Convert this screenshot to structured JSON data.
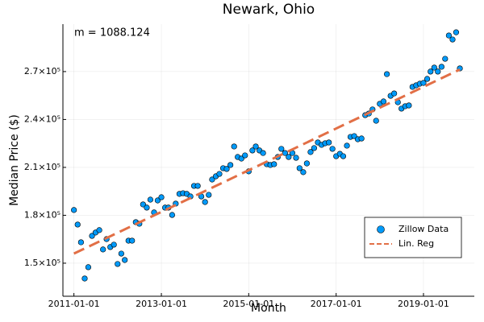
{
  "chart_data": {
    "type": "scatter",
    "title": "Newark, Ohio",
    "xlabel": "Month",
    "ylabel": "Median Price ($)",
    "annotation": "m = 1088.124",
    "grid": true,
    "legend": "lower right",
    "xlim": [
      "2010-10-01",
      "2020-03-01"
    ],
    "xticks": [
      "2011-01-01",
      "2013-01-01",
      "2015-01-01",
      "2017-01-01",
      "2019-01-01"
    ],
    "ylim": [
      129300,
      299700
    ],
    "yticks": [
      {
        "value": 150000,
        "label": "1.5×10⁵"
      },
      {
        "value": 180000,
        "label": "1.8×10⁵"
      },
      {
        "value": 210000,
        "label": "2.1×10⁵"
      },
      {
        "value": 240000,
        "label": "2.4×10⁵"
      },
      {
        "value": 270000,
        "label": "2.7×10⁵"
      }
    ],
    "series": [
      {
        "name": "Zillow Data",
        "type": "scatter",
        "color": "#009af9",
        "x": [
          "2011-01-01",
          "2011-02-01",
          "2011-03-01",
          "2011-04-01",
          "2011-05-01",
          "2011-06-01",
          "2011-07-01",
          "2011-08-01",
          "2011-09-01",
          "2011-10-01",
          "2011-11-01",
          "2011-12-01",
          "2012-01-01",
          "2012-02-01",
          "2012-03-01",
          "2012-04-01",
          "2012-05-01",
          "2012-06-01",
          "2012-07-01",
          "2012-08-01",
          "2012-09-01",
          "2012-10-01",
          "2012-11-01",
          "2012-12-01",
          "2013-01-01",
          "2013-02-01",
          "2013-03-01",
          "2013-04-01",
          "2013-05-01",
          "2013-06-01",
          "2013-07-01",
          "2013-08-01",
          "2013-09-01",
          "2013-10-01",
          "2013-11-01",
          "2013-12-01",
          "2014-01-01",
          "2014-02-01",
          "2014-03-01",
          "2014-04-01",
          "2014-05-01",
          "2014-06-01",
          "2014-07-01",
          "2014-08-01",
          "2014-09-01",
          "2014-10-01",
          "2014-11-01",
          "2014-12-01",
          "2015-01-01",
          "2015-02-01",
          "2015-03-01",
          "2015-04-01",
          "2015-05-01",
          "2015-06-01",
          "2015-07-01",
          "2015-08-01",
          "2015-09-01",
          "2015-10-01",
          "2015-11-01",
          "2015-12-01",
          "2016-01-01",
          "2016-02-01",
          "2016-03-01",
          "2016-04-01",
          "2016-05-01",
          "2016-06-01",
          "2016-07-01",
          "2016-08-01",
          "2016-09-01",
          "2016-10-01",
          "2016-11-01",
          "2016-12-01",
          "2017-01-01",
          "2017-02-01",
          "2017-03-01",
          "2017-04-01",
          "2017-05-01",
          "2017-06-01",
          "2017-07-01",
          "2017-08-01",
          "2017-09-01",
          "2017-10-01",
          "2017-11-01",
          "2017-12-01",
          "2018-01-01",
          "2018-02-01",
          "2018-03-01",
          "2018-04-01",
          "2018-05-01",
          "2018-06-01",
          "2018-07-01",
          "2018-08-01",
          "2018-09-01",
          "2018-10-01",
          "2018-11-01",
          "2018-12-01",
          "2019-01-01",
          "2019-02-01",
          "2019-03-01",
          "2019-04-01",
          "2019-05-01",
          "2019-06-01",
          "2019-07-01",
          "2019-08-01",
          "2019-09-01",
          "2019-10-01",
          "2019-11-01"
        ],
        "values": [
          183300,
          174200,
          163100,
          140400,
          147500,
          167100,
          169200,
          170700,
          158600,
          165100,
          160100,
          161600,
          149500,
          156000,
          152000,
          164100,
          164100,
          175700,
          174700,
          186800,
          184800,
          189800,
          181800,
          189300,
          191300,
          184800,
          184800,
          180200,
          187300,
          193400,
          193800,
          193400,
          191800,
          198400,
          198400,
          191800,
          188300,
          192800,
          202400,
          204400,
          205900,
          209500,
          209000,
          211500,
          223100,
          216500,
          215500,
          217500,
          207500,
          220600,
          223100,
          220600,
          219000,
          212000,
          211500,
          212000,
          216500,
          221600,
          219000,
          216500,
          219000,
          216000,
          209500,
          207000,
          212500,
          219600,
          222100,
          225600,
          224100,
          225100,
          225600,
          221600,
          217000,
          218500,
          217000,
          223600,
          229100,
          229600,
          227600,
          228100,
          242700,
          243700,
          246300,
          239200,
          249800,
          251300,
          268400,
          254800,
          256300,
          250800,
          246800,
          248300,
          248800,
          260400,
          261400,
          262400,
          262900,
          265400,
          270000,
          272500,
          270000,
          273000,
          278000,
          292600,
          290100,
          294600,
          272000
        ]
      },
      {
        "name": "Lin. Reg",
        "type": "line",
        "color": "#e26f46",
        "x": [
          "2011-01-01",
          "2019-11-01"
        ],
        "values": [
          156000,
          271300
        ]
      }
    ]
  }
}
